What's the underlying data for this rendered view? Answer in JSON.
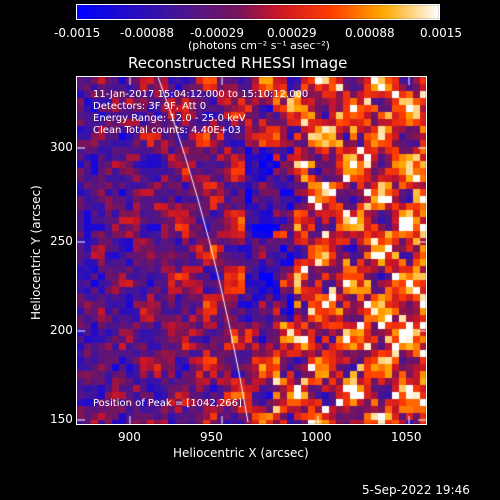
{
  "colorbar": {
    "ticks": [
      "-0.0015",
      "-0.00088",
      "-0.00029",
      "0.00029",
      "0.00088",
      "0.0015"
    ],
    "unit_label": "(photons cm⁻² s⁻¹ asec⁻²)"
  },
  "plot": {
    "title": "Reconstructed RHESSI Image",
    "xlabel": "Heliocentric X (arcsec)",
    "ylabel": "Heliocentric Y (arcsec)",
    "xticks": [
      "900",
      "950",
      "1000",
      "1050"
    ],
    "yticks": [
      "150",
      "200",
      "250",
      "300"
    ],
    "info": {
      "line1": "11-Jan-2017 15:04:12.000 to 15:10:12.000",
      "line2": "Detectors: 3F 9F, Att 0",
      "line3": "Energy Range: 12.0 - 25.0 keV",
      "line4": "Clean    Total counts: 4.40E+03"
    },
    "peak": "Position of Peak = [1042,266]"
  },
  "footer": {
    "date": "5-Sep-2022 19:46"
  }
}
